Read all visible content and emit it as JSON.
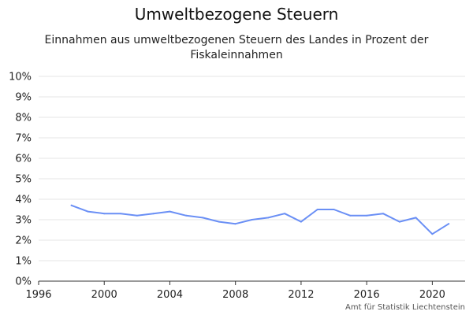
{
  "title": "Umweltbezogene Steuern",
  "subtitle": "Einnahmen aus umweltbezogenen Steuern des Landes in Prozent der Fiskaleinnahmen",
  "source": "Amt für Statistik Liechtenstein",
  "colors": {
    "line": "#6a8ff5",
    "grid": "#e6e6e6",
    "axis": "#333333"
  },
  "chart_data": {
    "type": "line",
    "title": "Umweltbezogene Steuern",
    "subtitle": "Einnahmen aus umweltbezogenen Steuern des Landes in Prozent der Fiskaleinnahmen",
    "xlim": [
      1996,
      2022
    ],
    "ylim": [
      0,
      10
    ],
    "x_ticks": [
      1996,
      2000,
      2004,
      2008,
      2012,
      2016,
      2020
    ],
    "x_tick_labels": [
      "1996",
      "2000",
      "2004",
      "2008",
      "2012",
      "2016",
      "2020"
    ],
    "y_ticks": [
      0,
      1,
      2,
      3,
      4,
      5,
      6,
      7,
      8,
      9,
      10
    ],
    "y_tick_labels": [
      "0%",
      "1%",
      "2%",
      "3%",
      "4%",
      "5%",
      "6%",
      "7%",
      "8%",
      "9%",
      "10%"
    ],
    "grid": true,
    "series": [
      {
        "x": [
          1998,
          1999,
          2000,
          2001,
          2002,
          2003,
          2004,
          2005,
          2006,
          2007,
          2008,
          2009,
          2010,
          2011,
          2012,
          2013,
          2014,
          2015,
          2016,
          2017,
          2018,
          2019,
          2020,
          2021
        ],
        "values": [
          3.7,
          3.4,
          3.3,
          3.3,
          3.2,
          3.3,
          3.4,
          3.2,
          3.1,
          2.9,
          2.8,
          3.0,
          3.1,
          3.3,
          2.9,
          3.5,
          3.5,
          3.2,
          3.2,
          3.3,
          2.9,
          3.1,
          2.3,
          2.8
        ]
      }
    ]
  }
}
